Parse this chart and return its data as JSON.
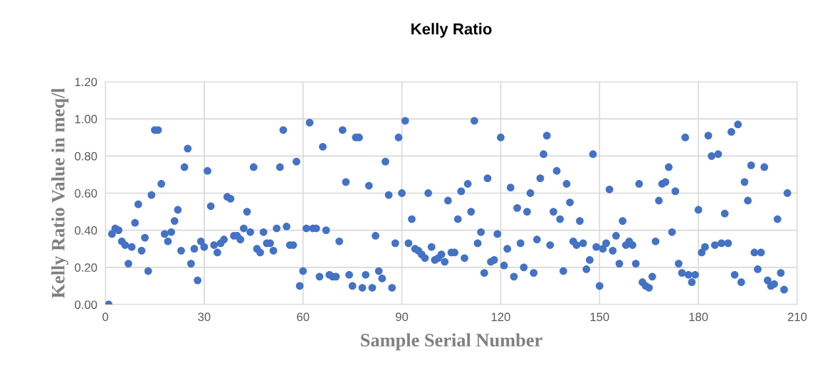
{
  "chart_data": {
    "type": "scatter",
    "title": "Kelly Ratio",
    "xlabel": "Sample Serial Number",
    "ylabel": "Kelly Ratio Value in meq/l",
    "x": [
      1,
      2,
      3,
      4,
      5,
      6,
      7,
      8,
      9,
      10,
      11,
      12,
      13,
      14,
      15,
      16,
      17,
      18,
      19,
      20,
      21,
      22,
      23,
      24,
      25,
      26,
      27,
      28,
      29,
      30,
      31,
      32,
      33,
      34,
      35,
      36,
      37,
      38,
      39,
      40,
      41,
      42,
      43,
      44,
      45,
      46,
      47,
      48,
      49,
      50,
      51,
      52,
      53,
      54,
      55,
      56,
      57,
      58,
      59,
      60,
      61,
      62,
      63,
      64,
      65,
      66,
      67,
      68,
      69,
      70,
      71,
      72,
      73,
      74,
      75,
      76,
      77,
      78,
      79,
      80,
      81,
      82,
      83,
      84,
      85,
      86,
      87,
      88,
      89,
      90,
      91,
      92,
      93,
      94,
      95,
      96,
      97,
      98,
      99,
      100,
      101,
      102,
      103,
      104,
      105,
      106,
      107,
      108,
      109,
      110,
      111,
      112,
      113,
      114,
      115,
      116,
      117,
      118,
      119,
      120,
      121,
      122,
      123,
      124,
      125,
      126,
      127,
      128,
      129,
      130,
      131,
      132,
      133,
      134,
      135,
      136,
      137,
      138,
      139,
      140,
      141,
      142,
      143,
      144,
      145,
      146,
      147,
      148,
      149,
      150,
      151,
      152,
      153,
      154,
      155,
      156,
      157,
      158,
      159,
      160,
      161,
      162,
      163,
      164,
      165,
      166,
      167,
      168,
      169,
      170,
      171,
      172,
      173,
      174,
      175,
      176,
      177,
      178,
      179,
      180,
      181,
      182,
      183,
      184,
      185,
      186,
      187,
      188,
      189,
      190,
      191,
      192,
      193,
      194,
      195,
      196,
      197,
      198,
      199,
      200,
      201,
      202,
      203,
      204,
      205,
      206,
      207
    ],
    "series": [
      {
        "color": "#4472c4",
        "values": [
          0.0,
          0.38,
          0.41,
          0.4,
          0.34,
          0.32,
          0.22,
          0.31,
          0.44,
          0.54,
          0.29,
          0.36,
          0.18,
          0.59,
          0.94,
          0.94,
          0.65,
          0.38,
          0.34,
          0.39,
          0.45,
          0.51,
          0.29,
          0.74,
          0.84,
          0.22,
          0.3,
          0.13,
          0.34,
          0.31,
          0.72,
          0.53,
          0.32,
          0.28,
          0.33,
          0.35,
          0.58,
          0.57,
          0.37,
          0.37,
          0.35,
          0.41,
          0.5,
          0.39,
          0.74,
          0.3,
          0.28,
          0.39,
          0.33,
          0.33,
          0.29,
          0.41,
          0.74,
          0.94,
          0.42,
          0.32,
          0.32,
          0.77,
          0.1,
          0.18,
          0.41,
          0.98,
          0.41,
          0.41,
          0.15,
          0.85,
          0.4,
          0.16,
          0.15,
          0.15,
          0.34,
          0.94,
          0.66,
          0.16,
          0.1,
          0.9,
          0.9,
          0.09,
          0.16,
          0.64,
          0.09,
          0.37,
          0.18,
          0.14,
          0.77,
          0.59,
          0.09,
          0.33,
          0.9,
          0.6,
          0.99,
          0.33,
          0.46,
          0.3,
          0.29,
          0.27,
          0.25,
          0.6,
          0.31,
          0.24,
          0.25,
          0.27,
          0.23,
          0.56,
          0.28,
          0.28,
          0.46,
          0.61,
          0.25,
          0.65,
          0.5,
          0.99,
          0.33,
          0.39,
          0.17,
          0.68,
          0.23,
          0.24,
          0.38,
          0.9,
          0.21,
          0.3,
          0.63,
          0.15,
          0.52,
          0.33,
          0.2,
          0.5,
          0.6,
          0.17,
          0.35,
          0.68,
          0.81,
          0.91,
          0.32,
          0.5,
          0.72,
          0.46,
          0.18,
          0.65,
          0.55,
          0.34,
          0.32,
          0.45,
          0.33,
          0.19,
          0.24,
          0.81,
          0.31,
          0.1,
          0.3,
          0.33,
          0.62,
          0.29,
          0.37,
          0.22,
          0.45,
          0.32,
          0.34,
          0.32,
          0.22,
          0.65,
          0.12,
          0.1,
          0.09,
          0.15,
          0.34,
          0.56,
          0.65,
          0.66,
          0.74,
          0.39,
          0.61,
          0.22,
          0.17,
          0.9,
          0.16,
          0.12,
          0.16,
          0.51,
          0.28,
          0.31,
          0.91,
          0.8,
          0.32,
          0.81,
          0.33,
          0.49,
          0.33,
          0.93,
          0.16,
          0.97,
          0.12,
          0.66,
          0.56,
          0.75,
          0.28,
          0.19,
          0.28,
          0.74,
          0.13,
          0.1,
          0.11,
          0.46,
          0.17,
          0.08,
          0.6
        ]
      }
    ],
    "xlim": [
      0,
      210
    ],
    "xticks": [
      0,
      30,
      60,
      90,
      120,
      150,
      180,
      210
    ],
    "ylim": [
      0,
      1.2
    ],
    "yticks": [
      {
        "value": 0,
        "label": "0.00"
      },
      {
        "value": 0.2,
        "label": "0.20"
      },
      {
        "value": 0.4,
        "label": "0.40"
      },
      {
        "value": 0.6,
        "label": "0.60"
      },
      {
        "value": 0.8,
        "label": "0.80"
      },
      {
        "value": 1.0,
        "label": "1.00"
      },
      {
        "value": 1.2,
        "label": "1.20"
      }
    ],
    "grid": true,
    "marker": "circle"
  }
}
